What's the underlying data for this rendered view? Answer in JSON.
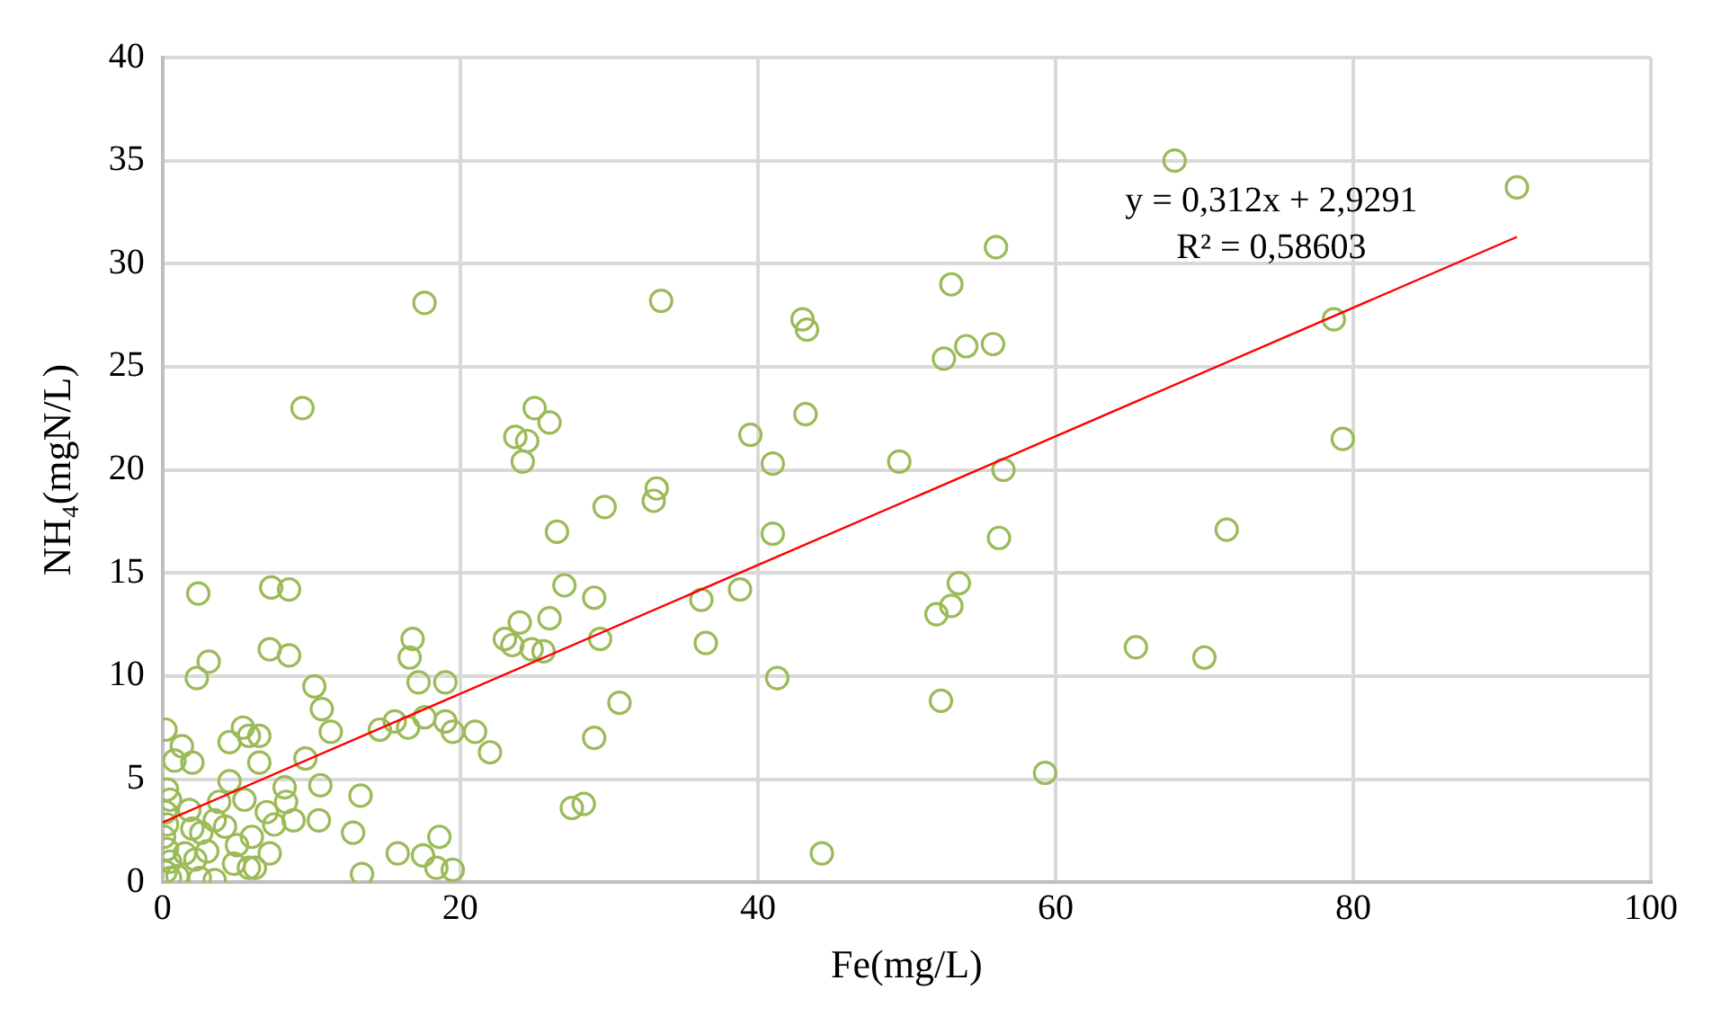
{
  "chart_data": {
    "type": "scatter",
    "xlabel": "Fe(mg/L)",
    "ylabel": "NH₄(mgN/L)",
    "xlim": [
      0,
      100
    ],
    "xticks": [
      0,
      20,
      40,
      60,
      80,
      100
    ],
    "ylim": [
      0,
      40
    ],
    "yticks": [
      0,
      5,
      10,
      15,
      20,
      25,
      30,
      35,
      40
    ],
    "grid": true,
    "legend": false,
    "marker": "circle",
    "annotations": [
      "y = 0,312x + 2,9291",
      "R² = 0,58603"
    ],
    "series": [
      {
        "color": "#9bbb59",
        "x": [
          68,
          91,
          56,
          53,
          54,
          55.8,
          52.5,
          78.7,
          43,
          43.3,
          43.2,
          39.5,
          41,
          49.5,
          56.5,
          79.3,
          71.5,
          56.2,
          41,
          53.5,
          52,
          53,
          38.8,
          36.2,
          36.5,
          41.3,
          52.3,
          65.4,
          70,
          59.3,
          44.3,
          17.6,
          33.5,
          9.4,
          25,
          26,
          23.7,
          24.5,
          24.2,
          33.2,
          29.7,
          33,
          26.5,
          27,
          29,
          26,
          24,
          23,
          23.5,
          24.8,
          25.6,
          29.4,
          30.7,
          29,
          27.5,
          28.3,
          22,
          21,
          19.5,
          19,
          19,
          17.2,
          16.8,
          16.6,
          16.5,
          17.6,
          15.6,
          14.6,
          13.3,
          12.8,
          13.4,
          15.8,
          17.5,
          18.6,
          18.4,
          19.5,
          7.3,
          8.5,
          2.4,
          3.1,
          2.3,
          7.2,
          8.5,
          10.2,
          10.7,
          11.3,
          9.6,
          5.4,
          5.8,
          6.5,
          4.5,
          1.3,
          0.2,
          0.8,
          2,
          6.5,
          4.5,
          8.2,
          10.6,
          8.3,
          7,
          5.5,
          3.8,
          0.3,
          0.5,
          0.2,
          0.3,
          0.1,
          0.3,
          0.5,
          0.2,
          0.5,
          1.5,
          2,
          2.6,
          3,
          2.2,
          2.5,
          3.5,
          4.8,
          5.8,
          6.2,
          7.2,
          7.5,
          6,
          4.2,
          8.8,
          10.5,
          1,
          1.8,
          3.5,
          5
        ],
        "values": [
          35,
          33.7,
          30.8,
          29,
          26,
          26.1,
          25.4,
          27.3,
          27.3,
          26.8,
          22.7,
          21.7,
          20.3,
          20.4,
          20,
          21.5,
          17.1,
          16.7,
          16.9,
          14.5,
          13,
          13.4,
          14.2,
          13.7,
          11.6,
          9.9,
          8.8,
          11.4,
          10.9,
          5.3,
          1.4,
          28.1,
          28.2,
          23,
          23,
          22.3,
          21.6,
          21.4,
          20.4,
          19.1,
          18.2,
          18.5,
          17,
          14.4,
          13.8,
          12.8,
          12.6,
          11.8,
          11.5,
          11.3,
          11.2,
          11.8,
          8.7,
          7,
          3.6,
          3.8,
          6.3,
          7.3,
          7.3,
          7.8,
          9.7,
          9.7,
          11.8,
          10.9,
          7.5,
          8,
          7.8,
          7.4,
          4.2,
          2.4,
          0.4,
          1.4,
          1.3,
          2.2,
          0.7,
          0.6,
          14.3,
          14.2,
          14,
          10.7,
          9.9,
          11.3,
          11,
          9.5,
          8.4,
          7.3,
          6,
          7.5,
          7.1,
          7.1,
          6.8,
          6.6,
          7.4,
          5.9,
          5.8,
          5.8,
          4.9,
          4.6,
          4.7,
          3.9,
          3.4,
          4,
          3.9,
          4.5,
          4,
          3.4,
          2.8,
          2.2,
          1.6,
          1,
          0.5,
          0.2,
          1.4,
          2.6,
          2.4,
          1.5,
          1.1,
          0.2,
          0.1,
          0.9,
          0.7,
          0.7,
          1.4,
          2.8,
          2.2,
          2.7,
          3,
          3,
          0.3,
          3.5,
          3,
          1.8
        ]
      },
      {
        "type": "line",
        "color": "#ff0000",
        "marker": "none",
        "line_style": "solid",
        "x": [
          0,
          91
        ],
        "values": [
          2.9,
          31.3
        ]
      }
    ]
  }
}
